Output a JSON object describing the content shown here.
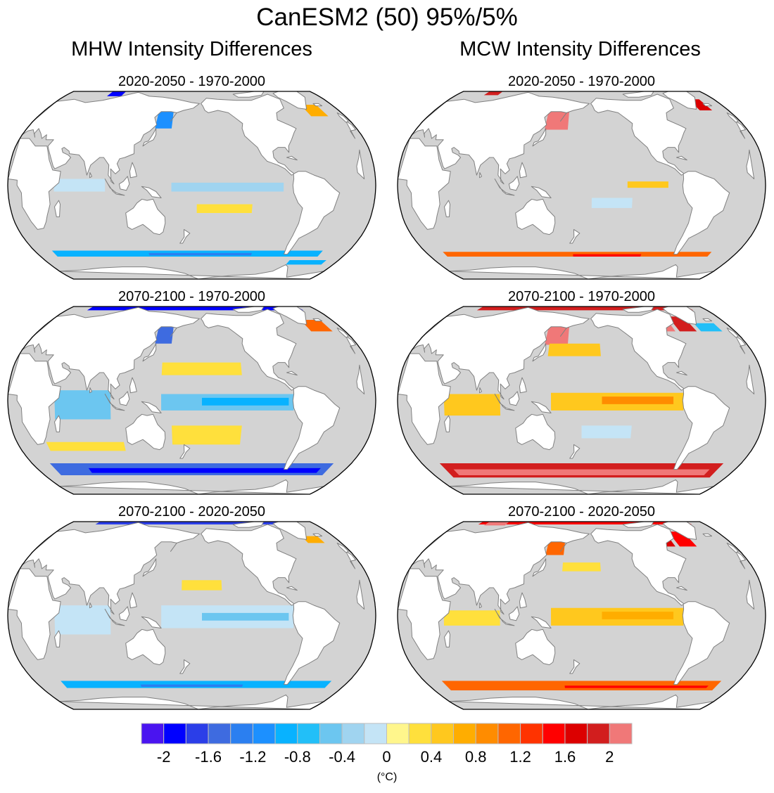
{
  "figure": {
    "title": "CanESM2 (50) 95%/5%",
    "columns": [
      {
        "title": "MHW Intensity Differences"
      },
      {
        "title": "MCW Intensity Differences"
      }
    ]
  },
  "colors": {
    "ocean_no_signal": "#d3d3d3",
    "land": "#ffffff",
    "coastline": "#808080",
    "frame": "#000000",
    "box_border": "#bdbdbd"
  },
  "chart_data": {
    "type": "heatmap",
    "projection": "Robinson (Pacific-centered, central longitude 180)",
    "units": "(°C)",
    "colorbar": {
      "levels_min": -2.2,
      "levels_max": 2.2,
      "step": 0.2,
      "tick_labels": [
        "-2",
        "-1.6",
        "-1.2",
        "-0.8",
        "-0.4",
        "0",
        "0.4",
        "0.8",
        "1.2",
        "1.6",
        "2"
      ],
      "tick_values": [
        -2,
        -1.6,
        -1.2,
        -0.8,
        -0.4,
        0,
        0.4,
        0.8,
        1.2,
        1.6,
        2
      ],
      "colors": [
        "#4a14f0",
        "#0000ff",
        "#2b3ee8",
        "#3e6be0",
        "#2b7ff0",
        "#1c90ff",
        "#08b2ff",
        "#22bff8",
        "#6cc6f0",
        "#a0d4f0",
        "#c4e4f6",
        "#fff68c",
        "#ffe03c",
        "#ffc81e",
        "#ffad00",
        "#ff8c00",
        "#ff6600",
        "#ff3300",
        "#ff0000",
        "#dc0000",
        "#d21e1e",
        "#f07878"
      ],
      "orientation": "horizontal",
      "placement": "bottom"
    },
    "panels": [
      {
        "id": "mhw-2020-2050-minus-1970-2000",
        "column": 0,
        "row": 0,
        "title": "2020-2050 - 1970-2000",
        "patches": [
          {
            "region": "Southern Ocean band",
            "lon": [
              20,
              330
            ],
            "lat": [
              -57,
              -52
            ],
            "value": -1.0
          },
          {
            "region": "Southern Ocean band core",
            "lon": [
              130,
              250
            ],
            "lat": [
              -56,
              -54
            ],
            "value": -1.3
          },
          {
            "region": "South Atlantic sector",
            "lon": [
              300,
              345
            ],
            "lat": [
              -64,
              -60
            ],
            "value": -1.0
          },
          {
            "region": "Sea of Okhotsk",
            "lon": [
              140,
              158
            ],
            "lat": [
              45,
              60
            ],
            "value": -1.2
          },
          {
            "region": "Arctic Siberian shelf",
            "lon": [
              60,
              80
            ],
            "lat": [
              73,
              80
            ],
            "value": -2.0
          },
          {
            "region": "Tropical Indian Ocean",
            "lon": [
              45,
              95
            ],
            "lat": [
              -5,
              5
            ],
            "value": -0.2
          },
          {
            "region": "Equatorial Pacific",
            "lon": [
              160,
              270
            ],
            "lat": [
              -5,
              2
            ],
            "value": -0.4
          },
          {
            "region": "North Atlantic",
            "lon": [
              320,
              340
            ],
            "lat": [
              55,
              65
            ],
            "value": 0.6
          },
          {
            "region": "South Pacific",
            "lon": [
              185,
              240
            ],
            "lat": [
              -22,
              -15
            ],
            "value": 0.2
          }
        ]
      },
      {
        "id": "mhw-2070-2100-minus-1970-2000",
        "column": 0,
        "row": 1,
        "title": "2070-2100 - 1970-2000",
        "patches": [
          {
            "region": "Southern Ocean band",
            "lon": [
              20,
              340
            ],
            "lat": [
              -60,
              -50
            ],
            "value": -1.6
          },
          {
            "region": "Southern Ocean band core",
            "lon": [
              60,
              330
            ],
            "lat": [
              -58,
              -54
            ],
            "value": -2.0
          },
          {
            "region": "Arctic margin",
            "lon": [
              30,
              340
            ],
            "lat": [
              74,
              85
            ],
            "value": -2.0
          },
          {
            "region": "Sea of Okhotsk",
            "lon": [
              140,
              158
            ],
            "lat": [
              45,
              60
            ],
            "value": -1.6
          },
          {
            "region": "Tropical Indian Ocean",
            "lon": [
              45,
              100
            ],
            "lat": [
              -15,
              8
            ],
            "value": -0.6
          },
          {
            "region": "Equatorial Pacific",
            "lon": [
              150,
              280
            ],
            "lat": [
              -8,
              5
            ],
            "value": -0.6
          },
          {
            "region": "Equatorial Pacific core",
            "lon": [
              190,
              275
            ],
            "lat": [
              -4,
              2
            ],
            "value": -1.0
          },
          {
            "region": "North Pacific",
            "lon": [
              150,
              230
            ],
            "lat": [
              20,
              30
            ],
            "value": 0.2
          },
          {
            "region": "South Pacific",
            "lon": [
              160,
              230
            ],
            "lat": [
              -35,
              -20
            ],
            "value": 0.2
          },
          {
            "region": "South Indian",
            "lon": [
              30,
              110
            ],
            "lat": [
              -40,
              -33
            ],
            "value": 0.2
          },
          {
            "region": "North Atlantic",
            "lon": [
              320,
              345
            ],
            "lat": [
              55,
              65
            ],
            "value": 1.0
          }
        ]
      },
      {
        "id": "mhw-2070-2100-minus-2020-2050",
        "column": 0,
        "row": 2,
        "title": "2070-2100 - 2020-2050",
        "patches": [
          {
            "region": "Southern Ocean band",
            "lon": [
              30,
              340
            ],
            "lat": [
              -58,
              -52
            ],
            "value": -1.0
          },
          {
            "region": "Southern Ocean band core",
            "lon": [
              120,
              240
            ],
            "lat": [
              -57,
              -55
            ],
            "value": -1.3
          },
          {
            "region": "Arctic margin",
            "lon": [
              40,
              330
            ],
            "lat": [
              75,
              85
            ],
            "value": -1.8
          },
          {
            "region": "Tropical Indian Ocean",
            "lon": [
              45,
              100
            ],
            "lat": [
              -15,
              8
            ],
            "value": -0.2
          },
          {
            "region": "Equatorial Pacific",
            "lon": [
              150,
              280
            ],
            "lat": [
              -10,
              8
            ],
            "value": -0.2
          },
          {
            "region": "Equatorial Pacific core",
            "lon": [
              190,
              275
            ],
            "lat": [
              -4,
              2
            ],
            "value": -0.6
          },
          {
            "region": "North Pacific",
            "lon": [
              170,
              210
            ],
            "lat": [
              20,
              28
            ],
            "value": 0.2
          },
          {
            "region": "North Atlantic",
            "lon": [
              320,
              340
            ],
            "lat": [
              58,
              64
            ],
            "value": 0.6
          }
        ]
      },
      {
        "id": "mcw-2020-2050-minus-1970-2000",
        "column": 1,
        "row": 0,
        "title": "2020-2050 - 1970-2000",
        "patches": [
          {
            "region": "Southern Ocean band",
            "lon": [
              20,
              330
            ],
            "lat": [
              -57,
              -53
            ],
            "value": 1.0
          },
          {
            "region": "Southern Ocean band core",
            "lon": [
              170,
              250
            ],
            "lat": [
              -57,
              -55
            ],
            "value": 1.4
          },
          {
            "region": "Sea of Okhotsk",
            "lon": [
              140,
              162
            ],
            "lat": [
              45,
              62
            ],
            "value": 1.8
          },
          {
            "region": "Sea of Okhotsk outer",
            "lon": [
              140,
              165
            ],
            "lat": [
              44,
              62
            ],
            "value": 2.2
          },
          {
            "region": "Arctic Barents",
            "lon": [
              40,
              60
            ],
            "lat": [
              74,
              80
            ],
            "value": 1.8
          },
          {
            "region": "Eastern Equatorial Pacific",
            "lon": [
              225,
              265
            ],
            "lat": [
              -2,
              3
            ],
            "value": 0.4
          },
          {
            "region": "South Pacific",
            "lon": [
              190,
              230
            ],
            "lat": [
              -18,
              -10
            ],
            "value": -0.2
          },
          {
            "region": "North Atlantic",
            "lon": [
              325,
              340
            ],
            "lat": [
              60,
              70
            ],
            "value": 1.6
          }
        ]
      },
      {
        "id": "mcw-2070-2100-minus-1970-2000",
        "column": 1,
        "row": 1,
        "title": "2070-2100 - 1970-2000",
        "patches": [
          {
            "region": "Southern Ocean band",
            "lon": [
              20,
              340
            ],
            "lat": [
              -62,
              -50
            ],
            "value": 1.8
          },
          {
            "region": "Southern Ocean band core",
            "lon": [
              30,
              330
            ],
            "lat": [
              -60,
              -55
            ],
            "value": 2.2
          },
          {
            "region": "Arctic margin",
            "lon": [
              30,
              340
            ],
            "lat": [
              74,
              85
            ],
            "value": 1.8
          },
          {
            "region": "Sea of Okhotsk",
            "lon": [
              140,
              165
            ],
            "lat": [
              44,
              62
            ],
            "value": 2.2
          },
          {
            "region": "Hudson Bay",
            "lon": [
              270,
              290
            ],
            "lat": [
              55,
              65
            ],
            "value": 2.0
          },
          {
            "region": "Labrador Sea",
            "lon": [
              295,
              315
            ],
            "lat": [
              55,
              68
            ],
            "value": 1.8
          },
          {
            "region": "North Atlantic",
            "lon": [
              320,
              345
            ],
            "lat": [
              55,
              62
            ],
            "value": -0.8
          },
          {
            "region": "North Pacific",
            "lon": [
              145,
              200
            ],
            "lat": [
              35,
              45
            ],
            "value": 0.4
          },
          {
            "region": "Equatorial Pacific",
            "lon": [
              150,
              280
            ],
            "lat": [
              -8,
              6
            ],
            "value": 0.4
          },
          {
            "region": "Equatorial Pacific core",
            "lon": [
              200,
              270
            ],
            "lat": [
              -3,
              3
            ],
            "value": 0.8
          },
          {
            "region": "Tropical Indian Ocean",
            "lon": [
              45,
              100
            ],
            "lat": [
              -12,
              5
            ],
            "value": 0.4
          },
          {
            "region": "South Pacific",
            "lon": [
              180,
              230
            ],
            "lat": [
              -30,
              -20
            ],
            "value": -0.2
          }
        ]
      },
      {
        "id": "mcw-2070-2100-minus-2020-2050",
        "column": 1,
        "row": 2,
        "title": "2070-2100 - 2020-2050",
        "patches": [
          {
            "region": "Southern Ocean band",
            "lon": [
              20,
              340
            ],
            "lat": [
              -60,
              -52
            ],
            "value": 1.0
          },
          {
            "region": "Southern Ocean band core",
            "lon": [
              160,
              330
            ],
            "lat": [
              -58,
              -56
            ],
            "value": 1.4
          },
          {
            "region": "Arctic margin",
            "lon": [
              30,
              340
            ],
            "lat": [
              75,
              85
            ],
            "value": 1.4
          },
          {
            "region": "Arctic Siberian shelf",
            "lon": [
              40,
              70
            ],
            "lat": [
              74,
              82
            ],
            "value": 2.2
          },
          {
            "region": "Sea of Okhotsk",
            "lon": [
              140,
              160
            ],
            "lat": [
              48,
              60
            ],
            "value": 1.0
          },
          {
            "region": "Hudson Bay",
            "lon": [
              270,
              290
            ],
            "lat": [
              55,
              65
            ],
            "value": 1.6
          },
          {
            "region": "Labrador Sea",
            "lon": [
              295,
              315
            ],
            "lat": [
              55,
              68
            ],
            "value": 1.4
          },
          {
            "region": "Equatorial Pacific",
            "lon": [
              150,
              280
            ],
            "lat": [
              -8,
              6
            ],
            "value": 0.4
          },
          {
            "region": "Equatorial Pacific core",
            "lon": [
              200,
              270
            ],
            "lat": [
              -3,
              3
            ],
            "value": 0.6
          },
          {
            "region": "Tropical Indian Ocean",
            "lon": [
              45,
              100
            ],
            "lat": [
              -8,
              4
            ],
            "value": 0.2
          },
          {
            "region": "North Pacific",
            "lon": [
              160,
              200
            ],
            "lat": [
              35,
              42
            ],
            "value": 0.2
          }
        ]
      }
    ]
  }
}
